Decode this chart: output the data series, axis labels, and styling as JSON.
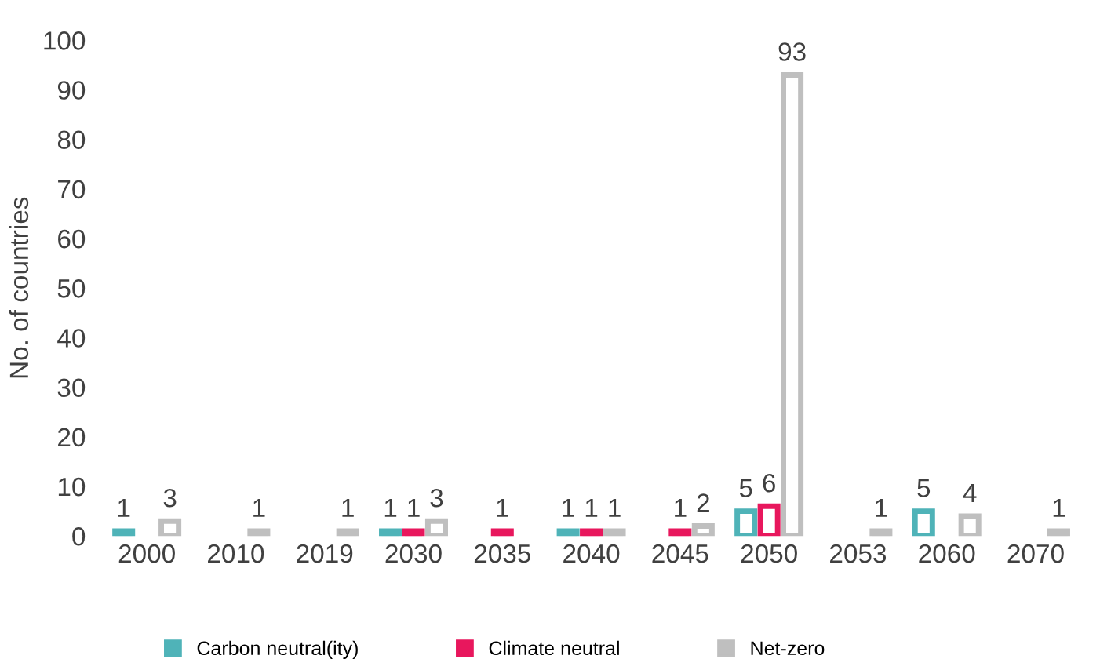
{
  "chart_data": {
    "type": "bar",
    "ylabel": "No. of countries",
    "categories": [
      "2000",
      "2010",
      "2019",
      "2030",
      "2035",
      "2040",
      "2045",
      "2050",
      "2053",
      "2060",
      "2070"
    ],
    "series": [
      {
        "name": "Carbon neutral(ity)",
        "color": "#4fb3b8",
        "values": [
          1,
          null,
          null,
          1,
          null,
          1,
          null,
          5,
          null,
          5,
          null
        ]
      },
      {
        "name": "Climate neutral",
        "color": "#e8175d",
        "values": [
          null,
          null,
          null,
          1,
          1,
          1,
          1,
          6,
          null,
          null,
          null
        ]
      },
      {
        "name": "Net-zero",
        "color": "#bfbfbf",
        "values": [
          3,
          1,
          1,
          3,
          null,
          1,
          2,
          93,
          1,
          4,
          1
        ]
      }
    ],
    "ylim": [
      0,
      100
    ],
    "yticks": [
      0,
      10,
      20,
      30,
      40,
      50,
      60,
      70,
      80,
      90,
      100
    ],
    "grid": false,
    "legend": "bottom",
    "data_labels": true
  }
}
